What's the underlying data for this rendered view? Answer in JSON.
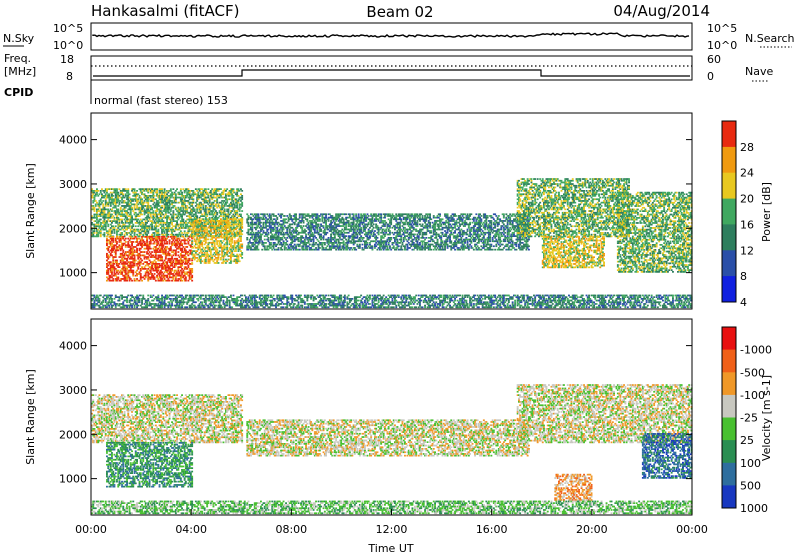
{
  "header": {
    "radar": "Hankasalmi (fitACF)",
    "beam": "Beam 02",
    "date": "04/Aug/2014"
  },
  "status_panel": {
    "nsky_label": "N.Sky",
    "nsearch_label": "N.Search",
    "freq_label_line1": "Freq.",
    "freq_label_line2": "[MHz]",
    "cpid_label": "CPID",
    "nave_label": "Nave",
    "nsky_ticks": [
      "10^5",
      "10^0"
    ],
    "nsearch_ticks": [
      "10^5",
      "10^0"
    ],
    "freq_ticks": [
      "18",
      "8"
    ],
    "nave_ticks": [
      "60",
      "0"
    ],
    "cpid_text": "normal (fast stereo) 153"
  },
  "chart_data": [
    {
      "type": "heatmap",
      "name": "power",
      "ylabel": "Slant Range [km]",
      "xlabel": "",
      "xlim": [
        0,
        24
      ],
      "ylim": [
        180,
        4600
      ],
      "y_ticks": [
        1000,
        2000,
        3000,
        4000
      ],
      "colorbar": {
        "label": "Power [dB]",
        "ticks": [
          "4",
          "8",
          "12",
          "16",
          "20",
          "24",
          "28"
        ],
        "colors": [
          "#1020e0",
          "#2a4fa8",
          "#2e7e5e",
          "#40a860",
          "#e8c820",
          "#f09a10",
          "#e82a10"
        ]
      },
      "regions": [
        {
          "t0": 0.0,
          "t1": 6.0,
          "r0": 1800,
          "r1": 2900,
          "level": 3
        },
        {
          "t0": 0.6,
          "t1": 4.0,
          "r0": 800,
          "r1": 1800,
          "level": 6
        },
        {
          "t0": 4.0,
          "t1": 6.0,
          "r0": 1200,
          "r1": 2200,
          "level": 4
        },
        {
          "t0": 6.2,
          "t1": 17.5,
          "r0": 1500,
          "r1": 2300,
          "level": 2
        },
        {
          "t0": 17.0,
          "t1": 21.5,
          "r0": 1800,
          "r1": 3100,
          "level": 3
        },
        {
          "t0": 18.0,
          "t1": 20.5,
          "r0": 1100,
          "r1": 1800,
          "level": 4
        },
        {
          "t0": 21.0,
          "t1": 24.0,
          "r0": 1000,
          "r1": 2800,
          "level": 3
        },
        {
          "t0": 0.0,
          "t1": 24.0,
          "r0": 200,
          "r1": 500,
          "level": 2
        }
      ]
    },
    {
      "type": "heatmap",
      "name": "velocity",
      "ylabel": "Slant Range [km]",
      "xlabel": "Time UT",
      "xlim": [
        0,
        24
      ],
      "ylim": [
        180,
        4600
      ],
      "y_ticks": [
        1000,
        2000,
        3000,
        4000
      ],
      "x_ticks": [
        "00:00",
        "04:00",
        "08:00",
        "12:00",
        "16:00",
        "20:00",
        "00:00"
      ],
      "colorbar": {
        "label": "Velocity [m s-1]",
        "ticks": [
          "1000",
          "500",
          "100",
          "25",
          "-25",
          "-100",
          "-500",
          "-1000"
        ],
        "colors": [
          "#1838c0",
          "#2e6e9e",
          "#2a8e52",
          "#48c030",
          "#c8c8c0",
          "#f09828",
          "#f06018",
          "#e81010"
        ]
      },
      "regions": [
        {
          "t0": 0.0,
          "t1": 6.0,
          "r0": 1800,
          "r1": 2900,
          "level": 4
        },
        {
          "t0": 0.6,
          "t1": 4.0,
          "r0": 800,
          "r1": 1800,
          "level": 2
        },
        {
          "t0": 6.2,
          "t1": 17.5,
          "r0": 1500,
          "r1": 2300,
          "level": 4
        },
        {
          "t0": 17.0,
          "t1": 24.0,
          "r0": 1800,
          "r1": 3100,
          "level": 4
        },
        {
          "t0": 18.5,
          "t1": 20.0,
          "r0": 500,
          "r1": 1100,
          "level": 5
        },
        {
          "t0": 22.0,
          "t1": 24.0,
          "r0": 1000,
          "r1": 2000,
          "level": 1
        },
        {
          "t0": 0.0,
          "t1": 24.0,
          "r0": 200,
          "r1": 500,
          "level": 3
        }
      ]
    }
  ]
}
